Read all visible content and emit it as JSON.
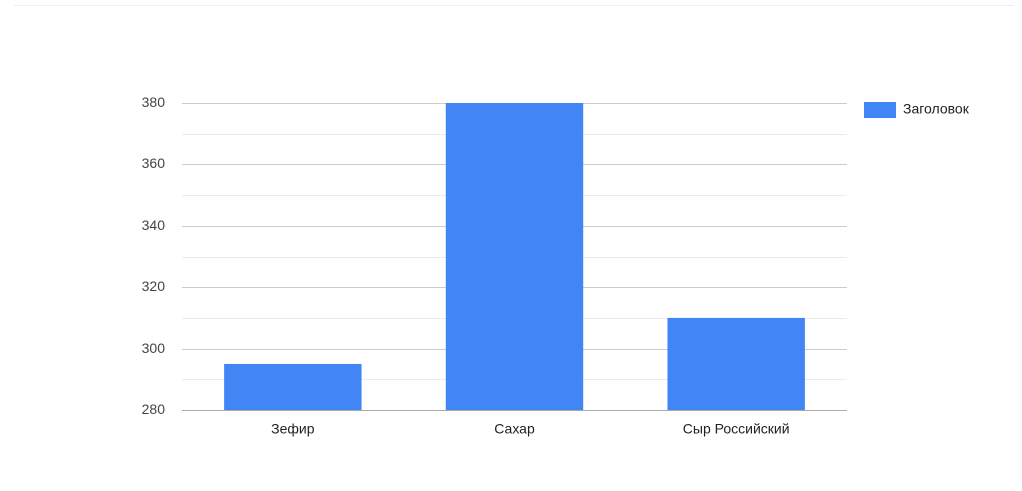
{
  "chart_data": {
    "type": "bar",
    "categories": [
      "Зефир",
      "Сахар",
      "Сыр Российский"
    ],
    "series": [
      {
        "name": "Заголовок",
        "color": "#4285f4",
        "values": [
          295,
          380,
          310
        ]
      }
    ],
    "ylim": [
      280,
      380
    ],
    "yticks": [
      280,
      300,
      320,
      340,
      360,
      380
    ],
    "minor_yticks": [
      290,
      310,
      330,
      350,
      370
    ],
    "grid": true,
    "legend": "right"
  }
}
